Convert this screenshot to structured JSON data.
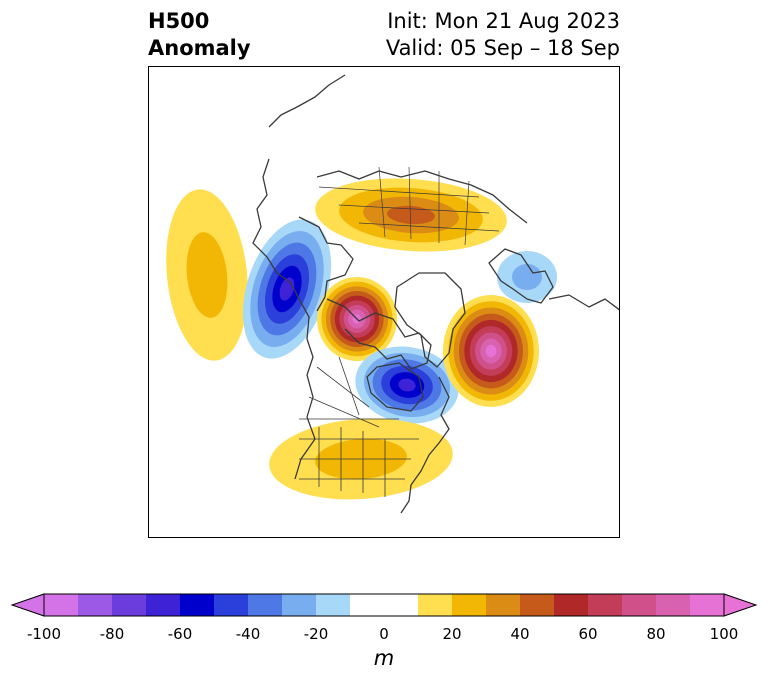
{
  "header": {
    "title_line1": "H500",
    "title_line2": "Anomaly",
    "init": "Init: Mon 21 Aug 2023",
    "valid": "Valid: 05 Sep – 18 Sep"
  },
  "map": {
    "projection": "north-polar-stereographic",
    "field": "500 hPa geopotential height anomaly",
    "anomaly_centers": [
      {
        "region": "Central Siberia / Russia",
        "sign": "positive",
        "peak_m": 40
      },
      {
        "region": "Eastern North Pacific",
        "sign": "positive",
        "peak_m": 20
      },
      {
        "region": "Alaska / Bering Sea",
        "sign": "negative",
        "peak_m": -60
      },
      {
        "region": "Beaufort Sea / Western Arctic",
        "sign": "positive",
        "peak_m": 90
      },
      {
        "region": "Hudson Bay / Central Canada",
        "sign": "negative",
        "peak_m": -60
      },
      {
        "region": "North Atlantic / Greenland-Iceland",
        "sign": "positive",
        "peak_m": 90
      },
      {
        "region": "Contiguous United States",
        "sign": "positive",
        "peak_m": 20
      },
      {
        "region": "Northern Europe",
        "sign": "negative",
        "peak_m": -20
      }
    ]
  },
  "colorbar": {
    "unit": "m",
    "extend": "both",
    "ticks": [
      "-100",
      "-80",
      "-60",
      "-40",
      "-20",
      "0",
      "20",
      "40",
      "60",
      "80",
      "100"
    ],
    "bins": [
      {
        "from": -100,
        "to": -90,
        "color": "#d473e8"
      },
      {
        "from": -90,
        "to": -80,
        "color": "#9b59e6"
      },
      {
        "from": -80,
        "to": -70,
        "color": "#6b3ddd"
      },
      {
        "from": -70,
        "to": -60,
        "color": "#3d22d6"
      },
      {
        "from": -60,
        "to": -50,
        "color": "#0000cd"
      },
      {
        "from": -50,
        "to": -40,
        "color": "#2b3fdb"
      },
      {
        "from": -40,
        "to": -30,
        "color": "#4d78e6"
      },
      {
        "from": -30,
        "to": -20,
        "color": "#78aef0"
      },
      {
        "from": -20,
        "to": -10,
        "color": "#a8d8f8"
      },
      {
        "from": -10,
        "to": 10,
        "color": "#ffffff"
      },
      {
        "from": 10,
        "to": 20,
        "color": "#ffde4f"
      },
      {
        "from": 20,
        "to": 30,
        "color": "#f2b705"
      },
      {
        "from": 30,
        "to": 40,
        "color": "#db8c15"
      },
      {
        "from": 40,
        "to": 50,
        "color": "#c65a1b"
      },
      {
        "from": 50,
        "to": 60,
        "color": "#b02828"
      },
      {
        "from": 60,
        "to": 70,
        "color": "#c33c58"
      },
      {
        "from": 70,
        "to": 80,
        "color": "#d0508a"
      },
      {
        "from": 80,
        "to": 90,
        "color": "#d962b0"
      },
      {
        "from": 90,
        "to": 100,
        "color": "#e772d6"
      }
    ]
  }
}
